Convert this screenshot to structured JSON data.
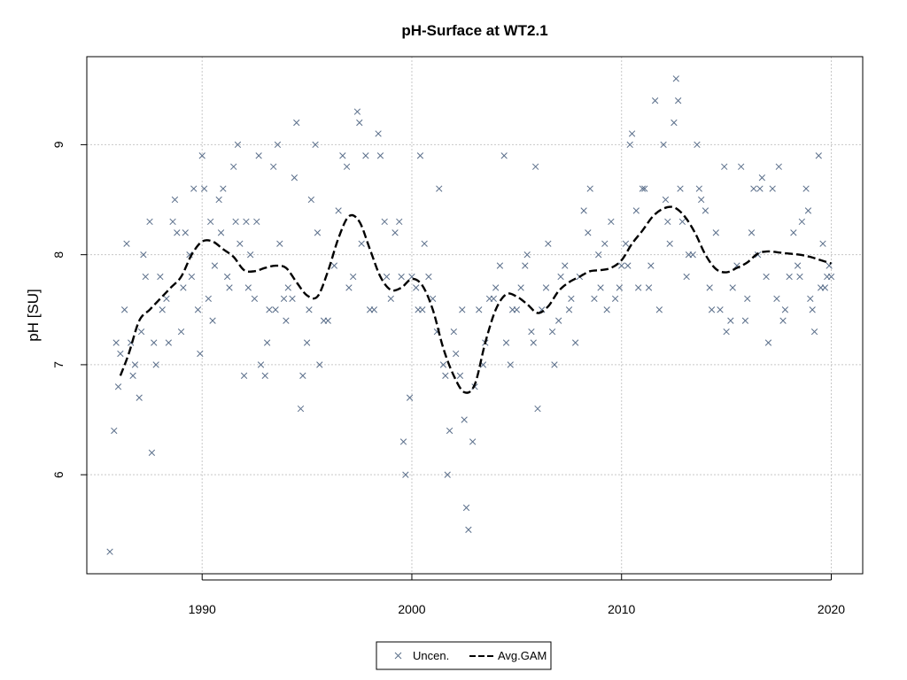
{
  "chart_data": {
    "type": "scatter",
    "title": "pH-Surface at WT2.1",
    "xlabel": "",
    "ylabel": "pH [SU]",
    "xlim": [
      1984.5,
      2021.5
    ],
    "ylim": [
      5.1,
      9.8
    ],
    "xticks": [
      1990,
      2000,
      2010,
      2020
    ],
    "yticks": [
      6,
      7,
      8,
      9
    ],
    "grid": true,
    "colors": {
      "points": "#5a6e8a",
      "line": "#000000",
      "grid": "#c8c8c8"
    },
    "legend": {
      "position": "bottom-center",
      "entries": [
        "Uncen.",
        "Avg.GAM"
      ]
    },
    "series": [
      {
        "name": "Uncen.",
        "type": "scatter",
        "marker": "x",
        "points": [
          [
            1985.6,
            5.3
          ],
          [
            1985.8,
            6.4
          ],
          [
            1985.9,
            7.2
          ],
          [
            1986.0,
            6.8
          ],
          [
            1986.1,
            7.1
          ],
          [
            1986.3,
            7.5
          ],
          [
            1986.4,
            8.1
          ],
          [
            1986.6,
            7.2
          ],
          [
            1986.7,
            6.9
          ],
          [
            1986.8,
            7.0
          ],
          [
            1987.0,
            6.7
          ],
          [
            1987.1,
            7.3
          ],
          [
            1987.2,
            8.0
          ],
          [
            1987.3,
            7.8
          ],
          [
            1987.5,
            8.3
          ],
          [
            1987.6,
            6.2
          ],
          [
            1987.7,
            7.2
          ],
          [
            1987.8,
            7.0
          ],
          [
            1988.0,
            7.8
          ],
          [
            1988.1,
            7.5
          ],
          [
            1988.3,
            7.6
          ],
          [
            1988.4,
            7.2
          ],
          [
            1988.6,
            8.3
          ],
          [
            1988.7,
            8.5
          ],
          [
            1988.8,
            8.2
          ],
          [
            1989.0,
            7.3
          ],
          [
            1989.1,
            7.7
          ],
          [
            1989.2,
            8.2
          ],
          [
            1989.4,
            8.0
          ],
          [
            1989.5,
            7.8
          ],
          [
            1989.6,
            8.6
          ],
          [
            1989.8,
            7.5
          ],
          [
            1989.9,
            7.1
          ],
          [
            1990.0,
            8.9
          ],
          [
            1990.1,
            8.6
          ],
          [
            1990.3,
            7.6
          ],
          [
            1990.4,
            8.3
          ],
          [
            1990.5,
            7.4
          ],
          [
            1990.6,
            7.9
          ],
          [
            1990.8,
            8.5
          ],
          [
            1990.9,
            8.2
          ],
          [
            1991.0,
            8.6
          ],
          [
            1991.2,
            7.8
          ],
          [
            1991.3,
            7.7
          ],
          [
            1991.5,
            8.8
          ],
          [
            1991.6,
            8.3
          ],
          [
            1991.7,
            9.0
          ],
          [
            1991.8,
            8.1
          ],
          [
            1992.0,
            6.9
          ],
          [
            1992.1,
            8.3
          ],
          [
            1992.2,
            7.7
          ],
          [
            1992.3,
            8.0
          ],
          [
            1992.5,
            7.6
          ],
          [
            1992.6,
            8.3
          ],
          [
            1992.7,
            8.9
          ],
          [
            1992.8,
            7.0
          ],
          [
            1993.0,
            6.9
          ],
          [
            1993.1,
            7.2
          ],
          [
            1993.2,
            7.5
          ],
          [
            1993.4,
            8.8
          ],
          [
            1993.5,
            7.5
          ],
          [
            1993.6,
            9.0
          ],
          [
            1993.7,
            8.1
          ],
          [
            1993.9,
            7.6
          ],
          [
            1994.0,
            7.4
          ],
          [
            1994.1,
            7.7
          ],
          [
            1994.3,
            7.6
          ],
          [
            1994.4,
            8.7
          ],
          [
            1994.5,
            9.2
          ],
          [
            1994.7,
            6.6
          ],
          [
            1994.8,
            6.9
          ],
          [
            1995.0,
            7.2
          ],
          [
            1995.1,
            7.5
          ],
          [
            1995.2,
            8.5
          ],
          [
            1995.4,
            9.0
          ],
          [
            1995.5,
            8.2
          ],
          [
            1995.6,
            7.0
          ],
          [
            1995.8,
            7.4
          ],
          [
            1996.0,
            7.4
          ],
          [
            1996.3,
            7.9
          ],
          [
            1996.5,
            8.4
          ],
          [
            1996.7,
            8.9
          ],
          [
            1996.9,
            8.8
          ],
          [
            1997.0,
            7.7
          ],
          [
            1997.2,
            7.8
          ],
          [
            1997.4,
            9.3
          ],
          [
            1997.5,
            9.2
          ],
          [
            1997.6,
            8.1
          ],
          [
            1997.8,
            8.9
          ],
          [
            1998.0,
            7.5
          ],
          [
            1998.2,
            7.5
          ],
          [
            1998.4,
            9.1
          ],
          [
            1998.5,
            8.9
          ],
          [
            1998.7,
            8.3
          ],
          [
            1998.8,
            7.8
          ],
          [
            1999.0,
            7.6
          ],
          [
            1999.2,
            8.2
          ],
          [
            1999.4,
            8.3
          ],
          [
            1999.5,
            7.8
          ],
          [
            1999.6,
            6.3
          ],
          [
            1999.7,
            6.0
          ],
          [
            1999.9,
            6.7
          ],
          [
            2000.0,
            7.8
          ],
          [
            2000.2,
            7.7
          ],
          [
            2000.3,
            7.5
          ],
          [
            2000.4,
            8.9
          ],
          [
            2000.5,
            7.5
          ],
          [
            2000.6,
            8.1
          ],
          [
            2000.8,
            7.8
          ],
          [
            2001.0,
            7.6
          ],
          [
            2001.2,
            7.3
          ],
          [
            2001.3,
            8.6
          ],
          [
            2001.5,
            7.0
          ],
          [
            2001.6,
            6.9
          ],
          [
            2001.7,
            6.0
          ],
          [
            2001.8,
            6.4
          ],
          [
            2002.0,
            7.3
          ],
          [
            2002.1,
            7.1
          ],
          [
            2002.3,
            6.9
          ],
          [
            2002.4,
            7.5
          ],
          [
            2002.5,
            6.5
          ],
          [
            2002.6,
            5.7
          ],
          [
            2002.7,
            5.5
          ],
          [
            2002.9,
            6.3
          ],
          [
            2003.0,
            6.8
          ],
          [
            2003.2,
            7.5
          ],
          [
            2003.4,
            7.0
          ],
          [
            2003.5,
            7.2
          ],
          [
            2003.7,
            7.6
          ],
          [
            2003.9,
            7.6
          ],
          [
            2004.0,
            7.7
          ],
          [
            2004.2,
            7.9
          ],
          [
            2004.4,
            8.9
          ],
          [
            2004.5,
            7.2
          ],
          [
            2004.7,
            7.0
          ],
          [
            2004.8,
            7.5
          ],
          [
            2005.0,
            7.5
          ],
          [
            2005.2,
            7.7
          ],
          [
            2005.4,
            7.9
          ],
          [
            2005.5,
            8.0
          ],
          [
            2005.7,
            7.3
          ],
          [
            2005.8,
            7.2
          ],
          [
            2005.9,
            8.8
          ],
          [
            2006.0,
            6.6
          ],
          [
            2006.2,
            7.5
          ],
          [
            2006.4,
            7.7
          ],
          [
            2006.5,
            8.1
          ],
          [
            2006.7,
            7.3
          ],
          [
            2006.8,
            7.0
          ],
          [
            2007.0,
            7.4
          ],
          [
            2007.1,
            7.8
          ],
          [
            2007.3,
            7.9
          ],
          [
            2007.5,
            7.5
          ],
          [
            2007.6,
            7.6
          ],
          [
            2007.8,
            7.2
          ],
          [
            2008.0,
            7.8
          ],
          [
            2008.2,
            8.4
          ],
          [
            2008.4,
            8.2
          ],
          [
            2008.5,
            8.6
          ],
          [
            2008.7,
            7.6
          ],
          [
            2008.9,
            8.0
          ],
          [
            2009.0,
            7.7
          ],
          [
            2009.2,
            8.1
          ],
          [
            2009.3,
            7.5
          ],
          [
            2009.5,
            8.3
          ],
          [
            2009.7,
            7.6
          ],
          [
            2009.9,
            7.7
          ],
          [
            2010.0,
            7.9
          ],
          [
            2010.2,
            8.1
          ],
          [
            2010.3,
            7.9
          ],
          [
            2010.4,
            9.0
          ],
          [
            2010.5,
            9.1
          ],
          [
            2010.7,
            8.4
          ],
          [
            2010.8,
            7.7
          ],
          [
            2011.0,
            8.6
          ],
          [
            2011.1,
            8.6
          ],
          [
            2011.3,
            7.7
          ],
          [
            2011.4,
            7.9
          ],
          [
            2011.6,
            9.4
          ],
          [
            2011.8,
            7.5
          ],
          [
            2012.0,
            9.0
          ],
          [
            2012.1,
            8.5
          ],
          [
            2012.2,
            8.3
          ],
          [
            2012.3,
            8.1
          ],
          [
            2012.5,
            9.2
          ],
          [
            2012.6,
            9.6
          ],
          [
            2012.7,
            9.4
          ],
          [
            2012.8,
            8.6
          ],
          [
            2012.9,
            8.3
          ],
          [
            2013.1,
            7.8
          ],
          [
            2013.2,
            8.0
          ],
          [
            2013.4,
            8.0
          ],
          [
            2013.6,
            9.0
          ],
          [
            2013.7,
            8.6
          ],
          [
            2013.8,
            8.5
          ],
          [
            2014.0,
            8.4
          ],
          [
            2014.2,
            7.7
          ],
          [
            2014.3,
            7.5
          ],
          [
            2014.5,
            8.2
          ],
          [
            2014.7,
            7.5
          ],
          [
            2014.9,
            8.8
          ],
          [
            2015.0,
            7.3
          ],
          [
            2015.2,
            7.4
          ],
          [
            2015.3,
            7.7
          ],
          [
            2015.5,
            7.9
          ],
          [
            2015.7,
            8.8
          ],
          [
            2015.9,
            7.4
          ],
          [
            2016.0,
            7.6
          ],
          [
            2016.2,
            8.2
          ],
          [
            2016.3,
            8.6
          ],
          [
            2016.5,
            8.0
          ],
          [
            2016.6,
            8.6
          ],
          [
            2016.7,
            8.7
          ],
          [
            2016.9,
            7.8
          ],
          [
            2017.0,
            7.2
          ],
          [
            2017.2,
            8.6
          ],
          [
            2017.4,
            7.6
          ],
          [
            2017.5,
            8.8
          ],
          [
            2017.7,
            7.4
          ],
          [
            2017.8,
            7.5
          ],
          [
            2018.0,
            7.8
          ],
          [
            2018.2,
            8.2
          ],
          [
            2018.4,
            7.9
          ],
          [
            2018.5,
            7.8
          ],
          [
            2018.6,
            8.3
          ],
          [
            2018.8,
            8.6
          ],
          [
            2018.9,
            8.4
          ],
          [
            2019.0,
            7.6
          ],
          [
            2019.1,
            7.5
          ],
          [
            2019.2,
            7.3
          ],
          [
            2019.4,
            8.9
          ],
          [
            2019.5,
            7.7
          ],
          [
            2019.6,
            8.1
          ],
          [
            2019.7,
            7.7
          ],
          [
            2019.8,
            7.8
          ],
          [
            2019.9,
            7.9
          ],
          [
            2020.0,
            7.8
          ]
        ]
      },
      {
        "name": "Avg.GAM",
        "type": "line",
        "style": "dashed",
        "points": [
          [
            1986.1,
            6.9
          ],
          [
            1986.5,
            7.1
          ],
          [
            1987.0,
            7.4
          ],
          [
            1987.5,
            7.5
          ],
          [
            1988.0,
            7.6
          ],
          [
            1988.5,
            7.7
          ],
          [
            1989.0,
            7.8
          ],
          [
            1989.5,
            8.0
          ],
          [
            1990.0,
            8.12
          ],
          [
            1990.5,
            8.12
          ],
          [
            1991.0,
            8.05
          ],
          [
            1991.5,
            7.98
          ],
          [
            1992.0,
            7.86
          ],
          [
            1992.5,
            7.85
          ],
          [
            1993.0,
            7.88
          ],
          [
            1993.5,
            7.9
          ],
          [
            1994.0,
            7.88
          ],
          [
            1994.5,
            7.75
          ],
          [
            1995.0,
            7.63
          ],
          [
            1995.5,
            7.62
          ],
          [
            1996.0,
            7.85
          ],
          [
            1996.5,
            8.15
          ],
          [
            1997.0,
            8.35
          ],
          [
            1997.5,
            8.3
          ],
          [
            1998.0,
            8.05
          ],
          [
            1998.5,
            7.8
          ],
          [
            1999.0,
            7.68
          ],
          [
            1999.5,
            7.7
          ],
          [
            2000.0,
            7.78
          ],
          [
            2000.5,
            7.72
          ],
          [
            2001.0,
            7.5
          ],
          [
            2001.5,
            7.15
          ],
          [
            2002.0,
            6.9
          ],
          [
            2002.5,
            6.75
          ],
          [
            2003.0,
            6.82
          ],
          [
            2003.5,
            7.2
          ],
          [
            2004.0,
            7.5
          ],
          [
            2004.5,
            7.64
          ],
          [
            2005.0,
            7.62
          ],
          [
            2005.5,
            7.55
          ],
          [
            2006.0,
            7.47
          ],
          [
            2006.5,
            7.53
          ],
          [
            2007.0,
            7.67
          ],
          [
            2007.5,
            7.75
          ],
          [
            2008.0,
            7.8
          ],
          [
            2008.5,
            7.85
          ],
          [
            2009.0,
            7.86
          ],
          [
            2009.5,
            7.88
          ],
          [
            2010.0,
            7.95
          ],
          [
            2010.5,
            8.1
          ],
          [
            2011.0,
            8.22
          ],
          [
            2011.5,
            8.35
          ],
          [
            2012.0,
            8.42
          ],
          [
            2012.5,
            8.43
          ],
          [
            2013.0,
            8.35
          ],
          [
            2013.5,
            8.2
          ],
          [
            2014.0,
            8.0
          ],
          [
            2014.5,
            7.87
          ],
          [
            2015.0,
            7.84
          ],
          [
            2015.5,
            7.88
          ],
          [
            2016.0,
            7.93
          ],
          [
            2016.5,
            8.01
          ],
          [
            2017.0,
            8.03
          ],
          [
            2017.5,
            8.02
          ],
          [
            2018.0,
            8.01
          ],
          [
            2018.5,
            8.0
          ],
          [
            2019.0,
            7.98
          ],
          [
            2019.5,
            7.95
          ],
          [
            2020.0,
            7.92
          ]
        ]
      }
    ]
  }
}
